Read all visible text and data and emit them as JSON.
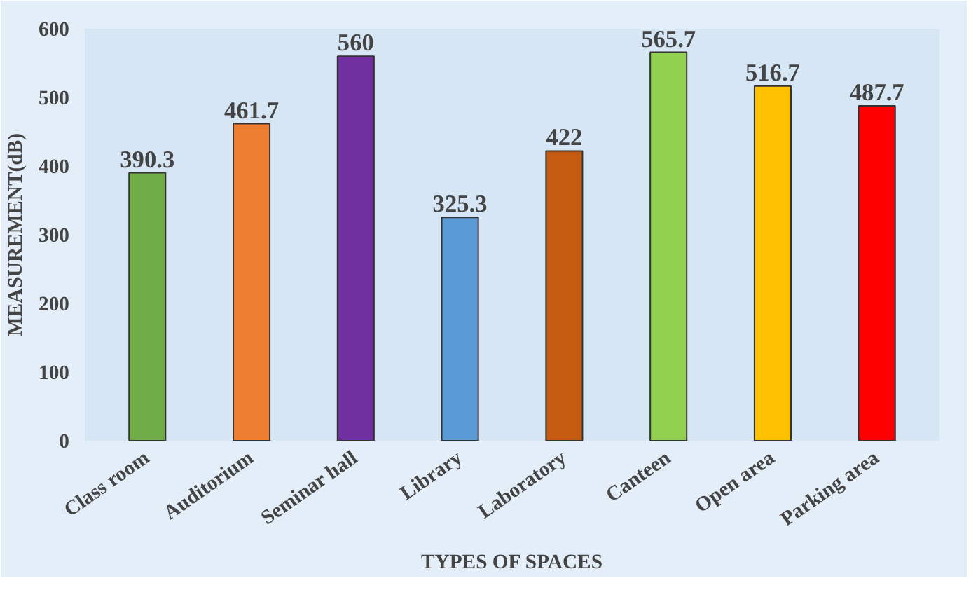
{
  "chart_data": {
    "type": "bar",
    "xlabel": "TYPES OF SPACES",
    "ylabel": "MEASUREMENT(dB)",
    "categories": [
      "Class room",
      "Auditorium",
      "Seminar hall",
      "Library",
      "Laboratory",
      "Canteen",
      "Open area",
      "Parking area"
    ],
    "values": [
      390.3,
      461.7,
      560,
      325.3,
      422,
      565.7,
      516.7,
      487.7
    ],
    "colors": [
      "#70ad47",
      "#ed7d31",
      "#7030a0",
      "#5b9bd5",
      "#c55a11",
      "#92d050",
      "#ffc000",
      "#ff0000"
    ],
    "ylim": [
      0,
      600
    ],
    "yticks": [
      0,
      100,
      200,
      300,
      400,
      500,
      600
    ],
    "grid": false,
    "data_labels": true
  }
}
